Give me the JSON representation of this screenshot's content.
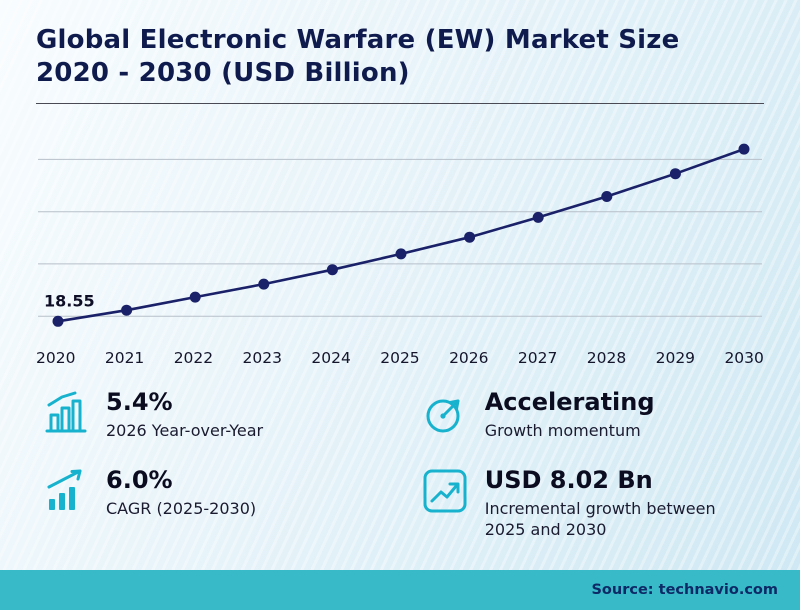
{
  "title": "Global Electronic Warfare (EW) Market Size 2020 - 2030 (USD Billion)",
  "chart_data": {
    "type": "line",
    "title": "Global Electronic Warfare (EW) Market Size 2020 - 2030 (USD Billion)",
    "series_name": "Market size (USD Billion)",
    "x": [
      2020,
      2021,
      2022,
      2023,
      2024,
      2025,
      2026,
      2027,
      2028,
      2029,
      2030
    ],
    "values": [
      18.55,
      19.4,
      20.4,
      21.4,
      22.5,
      23.71,
      24.99,
      26.5,
      28.1,
      29.85,
      31.73
    ],
    "point_labels": {
      "2020": "18.55"
    },
    "ylim": [
      17.5,
      33.5
    ],
    "grid": "horizontal",
    "legend": "none"
  },
  "stats": [
    {
      "value": "5.4%",
      "label": "2026 Year-over-Year",
      "icon": "bar-chart-icon"
    },
    {
      "value": "Accelerating",
      "label": "Growth momentum",
      "icon": "gauge-icon"
    },
    {
      "value": "6.0%",
      "label": "CAGR (2025-2030)",
      "icon": "rising-bars-arrow-icon"
    },
    {
      "value": "USD 8.02 Bn",
      "label": "Incremental growth between 2025 and 2030",
      "icon": "growth-chart-icon"
    }
  ],
  "footer": {
    "source": "Source: technavio.com"
  },
  "colors": {
    "navy": "#101b4d",
    "line": "#1b2168",
    "accent": "#17b2cd",
    "footerbar": "#38bac9",
    "grid": "#b7bfc9"
  }
}
